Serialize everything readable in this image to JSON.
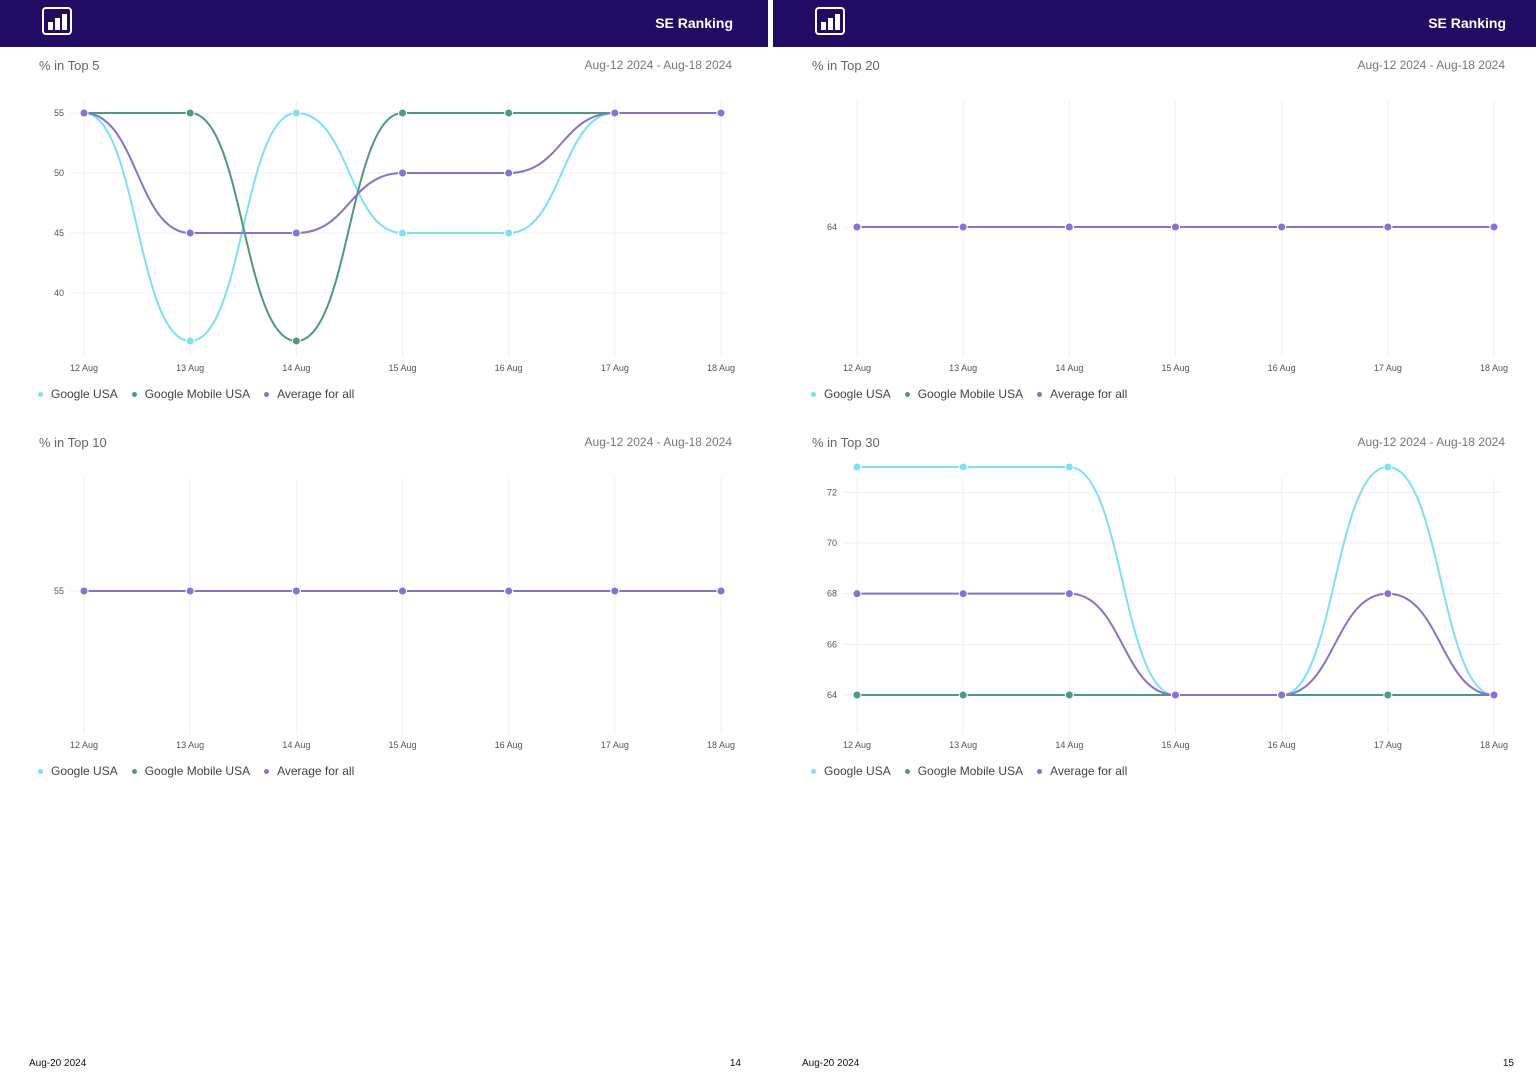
{
  "pages": [
    {
      "brand": "SE Ranking",
      "footer_date": "Aug-20 2024",
      "page_number": "14"
    },
    {
      "brand": "SE Ranking",
      "footer_date": "Aug-20 2024",
      "page_number": "15"
    }
  ],
  "legend": [
    {
      "name": "Google USA",
      "color": "#7fe0ef"
    },
    {
      "name": "Google Mobile USA",
      "color": "#4f9a7a"
    },
    {
      "name": "Average for all",
      "color": "#8473cf"
    }
  ],
  "chart_data": [
    {
      "type": "line",
      "title": "% in Top 5",
      "date_range": "Aug-12 2024 - Aug-18 2024",
      "categories": [
        "12 Aug",
        "13 Aug",
        "14 Aug",
        "15 Aug",
        "16 Aug",
        "17 Aug",
        "18 Aug"
      ],
      "yticks": [
        40,
        45,
        50,
        55
      ],
      "ylim": [
        36,
        55
      ],
      "grid": true,
      "series": [
        {
          "name": "Google USA",
          "color": "#7fe0ef",
          "values": [
            55,
            36,
            55,
            45,
            45,
            55,
            55
          ]
        },
        {
          "name": "Google Mobile USA",
          "color": "#4f9a7a",
          "values": [
            55,
            55,
            36,
            55,
            55,
            55,
            55
          ]
        },
        {
          "name": "Average for all",
          "color": "#8473cf",
          "values": [
            55,
            45,
            45,
            50,
            50,
            55,
            55
          ]
        }
      ]
    },
    {
      "type": "line",
      "title": "% in Top 10",
      "date_range": "Aug-12 2024 - Aug-18 2024",
      "categories": [
        "12 Aug",
        "13 Aug",
        "14 Aug",
        "15 Aug",
        "16 Aug",
        "17 Aug",
        "18 Aug"
      ],
      "yticks": [
        55
      ],
      "ylim": [
        45,
        65
      ],
      "grid": true,
      "series": [
        {
          "name": "Google USA",
          "color": "#7fe0ef",
          "values": [
            55,
            55,
            55,
            55,
            55,
            55,
            55
          ]
        },
        {
          "name": "Google Mobile USA",
          "color": "#4f9a7a",
          "values": [
            55,
            55,
            55,
            55,
            55,
            55,
            55
          ]
        },
        {
          "name": "Average for all",
          "color": "#8473cf",
          "values": [
            55,
            55,
            55,
            55,
            55,
            55,
            55
          ]
        }
      ]
    },
    {
      "type": "line",
      "title": "% in Top 20",
      "date_range": "Aug-12 2024 - Aug-18 2024",
      "categories": [
        "12 Aug",
        "13 Aug",
        "14 Aug",
        "15 Aug",
        "16 Aug",
        "17 Aug",
        "18 Aug"
      ],
      "yticks": [
        64
      ],
      "ylim": [
        54,
        74
      ],
      "grid": true,
      "series": [
        {
          "name": "Google USA",
          "color": "#7fe0ef",
          "values": [
            64,
            64,
            64,
            64,
            64,
            64,
            64
          ]
        },
        {
          "name": "Google Mobile USA",
          "color": "#4f9a7a",
          "values": [
            64,
            64,
            64,
            64,
            64,
            64,
            64
          ]
        },
        {
          "name": "Average for all",
          "color": "#8473cf",
          "values": [
            64,
            64,
            64,
            64,
            64,
            64,
            64
          ]
        }
      ]
    },
    {
      "type": "line",
      "title": "% in Top 30",
      "date_range": "Aug-12 2024 - Aug-18 2024",
      "categories": [
        "12 Aug",
        "13 Aug",
        "14 Aug",
        "15 Aug",
        "16 Aug",
        "17 Aug",
        "18 Aug"
      ],
      "yticks": [
        64,
        66,
        68,
        70,
        72
      ],
      "ylim": [
        64,
        73
      ],
      "grid": true,
      "series": [
        {
          "name": "Google USA",
          "color": "#7fe0ef",
          "values": [
            73,
            73,
            73,
            64,
            64,
            73,
            64
          ]
        },
        {
          "name": "Google Mobile USA",
          "color": "#4f9a7a",
          "values": [
            64,
            64,
            64,
            64,
            64,
            64,
            64
          ]
        },
        {
          "name": "Average for all",
          "color": "#8473cf",
          "values": [
            68,
            68,
            68,
            64,
            64,
            68,
            64
          ]
        }
      ]
    }
  ]
}
